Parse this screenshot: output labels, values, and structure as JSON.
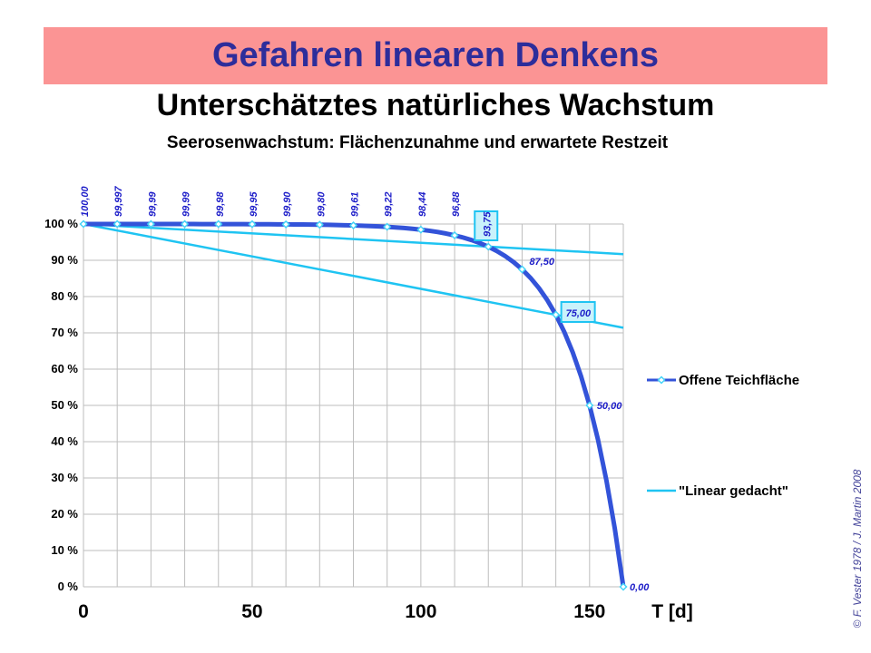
{
  "banner": {
    "title": "Gefahren linearen Denkens"
  },
  "subtitle": "Unterschätztes natürliches Wachstum",
  "chart_heading": "Seerosenwachstum:  Flächenzunahme und erwartete Restzeit",
  "credit": "© F. Vester 1978  /  J. Martin 2008",
  "colors": {
    "banner_bg": "#FB9494",
    "banner_text": "#2D2D9B",
    "series_dark": "#3353D9",
    "series_light": "#1FC4F2",
    "marker_stroke": "#45D4F7",
    "marker_fill": "#FFFFFF",
    "grid": "#BEBEBE",
    "data_label": "#1C1CC8",
    "label_box_fill": "#C9F2FB",
    "credit_text": "#44449A"
  },
  "chart_data": {
    "type": "line",
    "title": "Seerosenwachstum: Flächenzunahme und erwartete Restzeit",
    "xlabel": "T [d]",
    "ylabel": "%",
    "xlim": [
      0,
      160
    ],
    "ylim": [
      0,
      100
    ],
    "x_ticks": [
      0,
      50,
      100,
      150
    ],
    "y_tick_labels": [
      "100 %",
      "90 %",
      "80 %",
      "70 %",
      "60 %",
      "50 %",
      "40 %",
      "30 %",
      "20 %",
      "10 %",
      "0 %"
    ],
    "grid_on": true,
    "grid_step_x_days": 10,
    "grid_step_y_pct": 10,
    "legend_position": "right",
    "pond_full_day": 160,
    "doubling_period_days": 10,
    "series": [
      {
        "name": "Offene Teichfläche",
        "x": [
          0,
          10,
          20,
          30,
          40,
          50,
          60,
          70,
          80,
          90,
          100,
          110,
          120,
          130,
          140,
          150,
          160
        ],
        "values": [
          100,
          99.997,
          99.99,
          99.99,
          99.98,
          99.95,
          99.9,
          99.8,
          99.61,
          99.22,
          98.44,
          96.88,
          93.75,
          87.5,
          75,
          50,
          0
        ],
        "point_labels": [
          {
            "text": "100,00",
            "rotated": true,
            "boxed": false
          },
          {
            "text": "99,997",
            "rotated": true,
            "boxed": false
          },
          {
            "text": "99,99",
            "rotated": true,
            "boxed": false
          },
          {
            "text": "99,99",
            "rotated": true,
            "boxed": false
          },
          {
            "text": "99,98",
            "rotated": true,
            "boxed": false
          },
          {
            "text": "99,95",
            "rotated": true,
            "boxed": false
          },
          {
            "text": "99,90",
            "rotated": true,
            "boxed": false
          },
          {
            "text": "99,80",
            "rotated": true,
            "boxed": false
          },
          {
            "text": "99,61",
            "rotated": true,
            "boxed": false
          },
          {
            "text": "99,22",
            "rotated": true,
            "boxed": false
          },
          {
            "text": "98,44",
            "rotated": true,
            "boxed": false
          },
          {
            "text": "96,88",
            "rotated": true,
            "boxed": false
          },
          {
            "text": "93,75",
            "rotated": true,
            "boxed": true
          },
          {
            "text": "87,50",
            "rotated": false,
            "boxed": false
          },
          {
            "text": "75,00",
            "rotated": false,
            "boxed": true
          },
          {
            "text": "50,00",
            "rotated": false,
            "boxed": false
          },
          {
            "text": "0,00",
            "rotated": false,
            "boxed": false
          }
        ]
      },
      {
        "name": "\"Linear gedacht\"",
        "lines": [
          {
            "x": [
              0,
              160
            ],
            "y": [
              100,
              91.7
            ]
          },
          {
            "x": [
              0,
              160
            ],
            "y": [
              100,
              71.4
            ]
          }
        ]
      }
    ]
  },
  "legend": {
    "items": [
      {
        "label": "Offene Teichfläche"
      },
      {
        "label": "\"Linear gedacht\""
      }
    ]
  }
}
